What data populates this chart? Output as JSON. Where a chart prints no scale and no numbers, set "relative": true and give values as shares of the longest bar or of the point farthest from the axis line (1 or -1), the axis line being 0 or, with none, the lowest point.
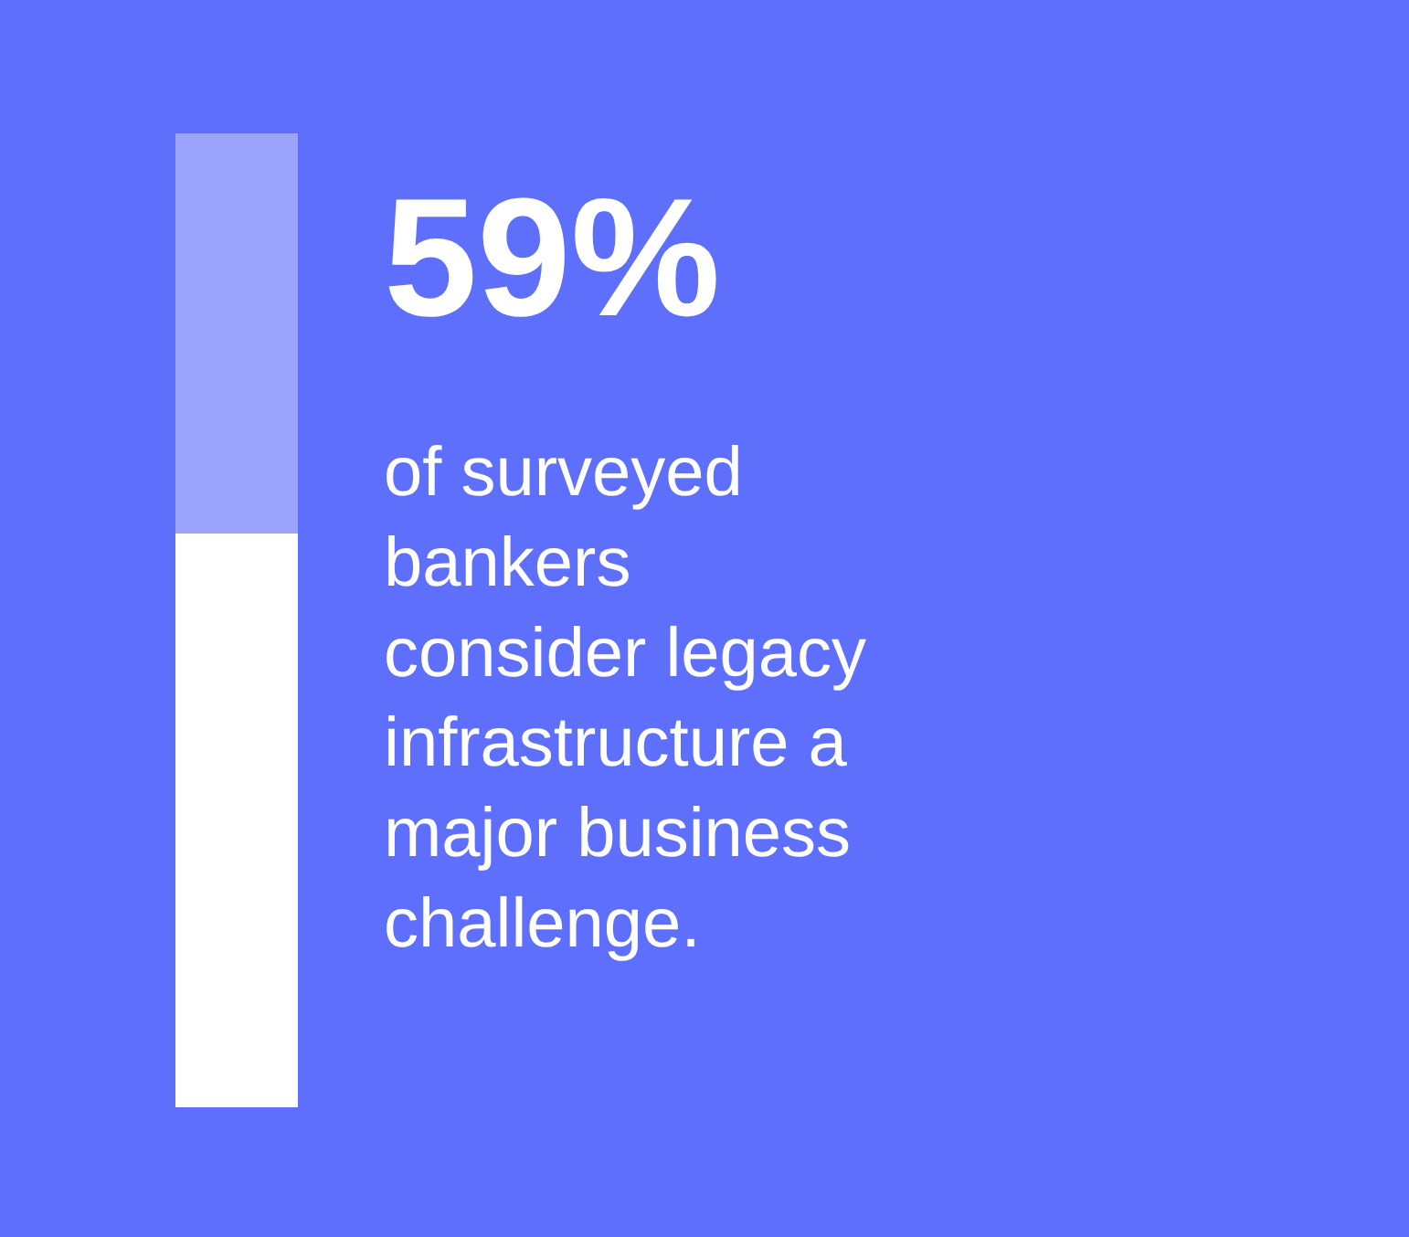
{
  "chart_data": {
    "type": "bar",
    "title": "59%",
    "subtitle": "of surveyed\nbankers\nconsider legacy\ninfrastructure a\nmajor business\nchallenge.",
    "categories": [
      null
    ],
    "stacked": true,
    "relative": true,
    "legend": false,
    "series": [
      {
        "color": "#ffffff",
        "values": [
          0.59
        ]
      },
      {
        "color": "#9ba3fb",
        "values": [
          0.41
        ]
      }
    ]
  }
}
